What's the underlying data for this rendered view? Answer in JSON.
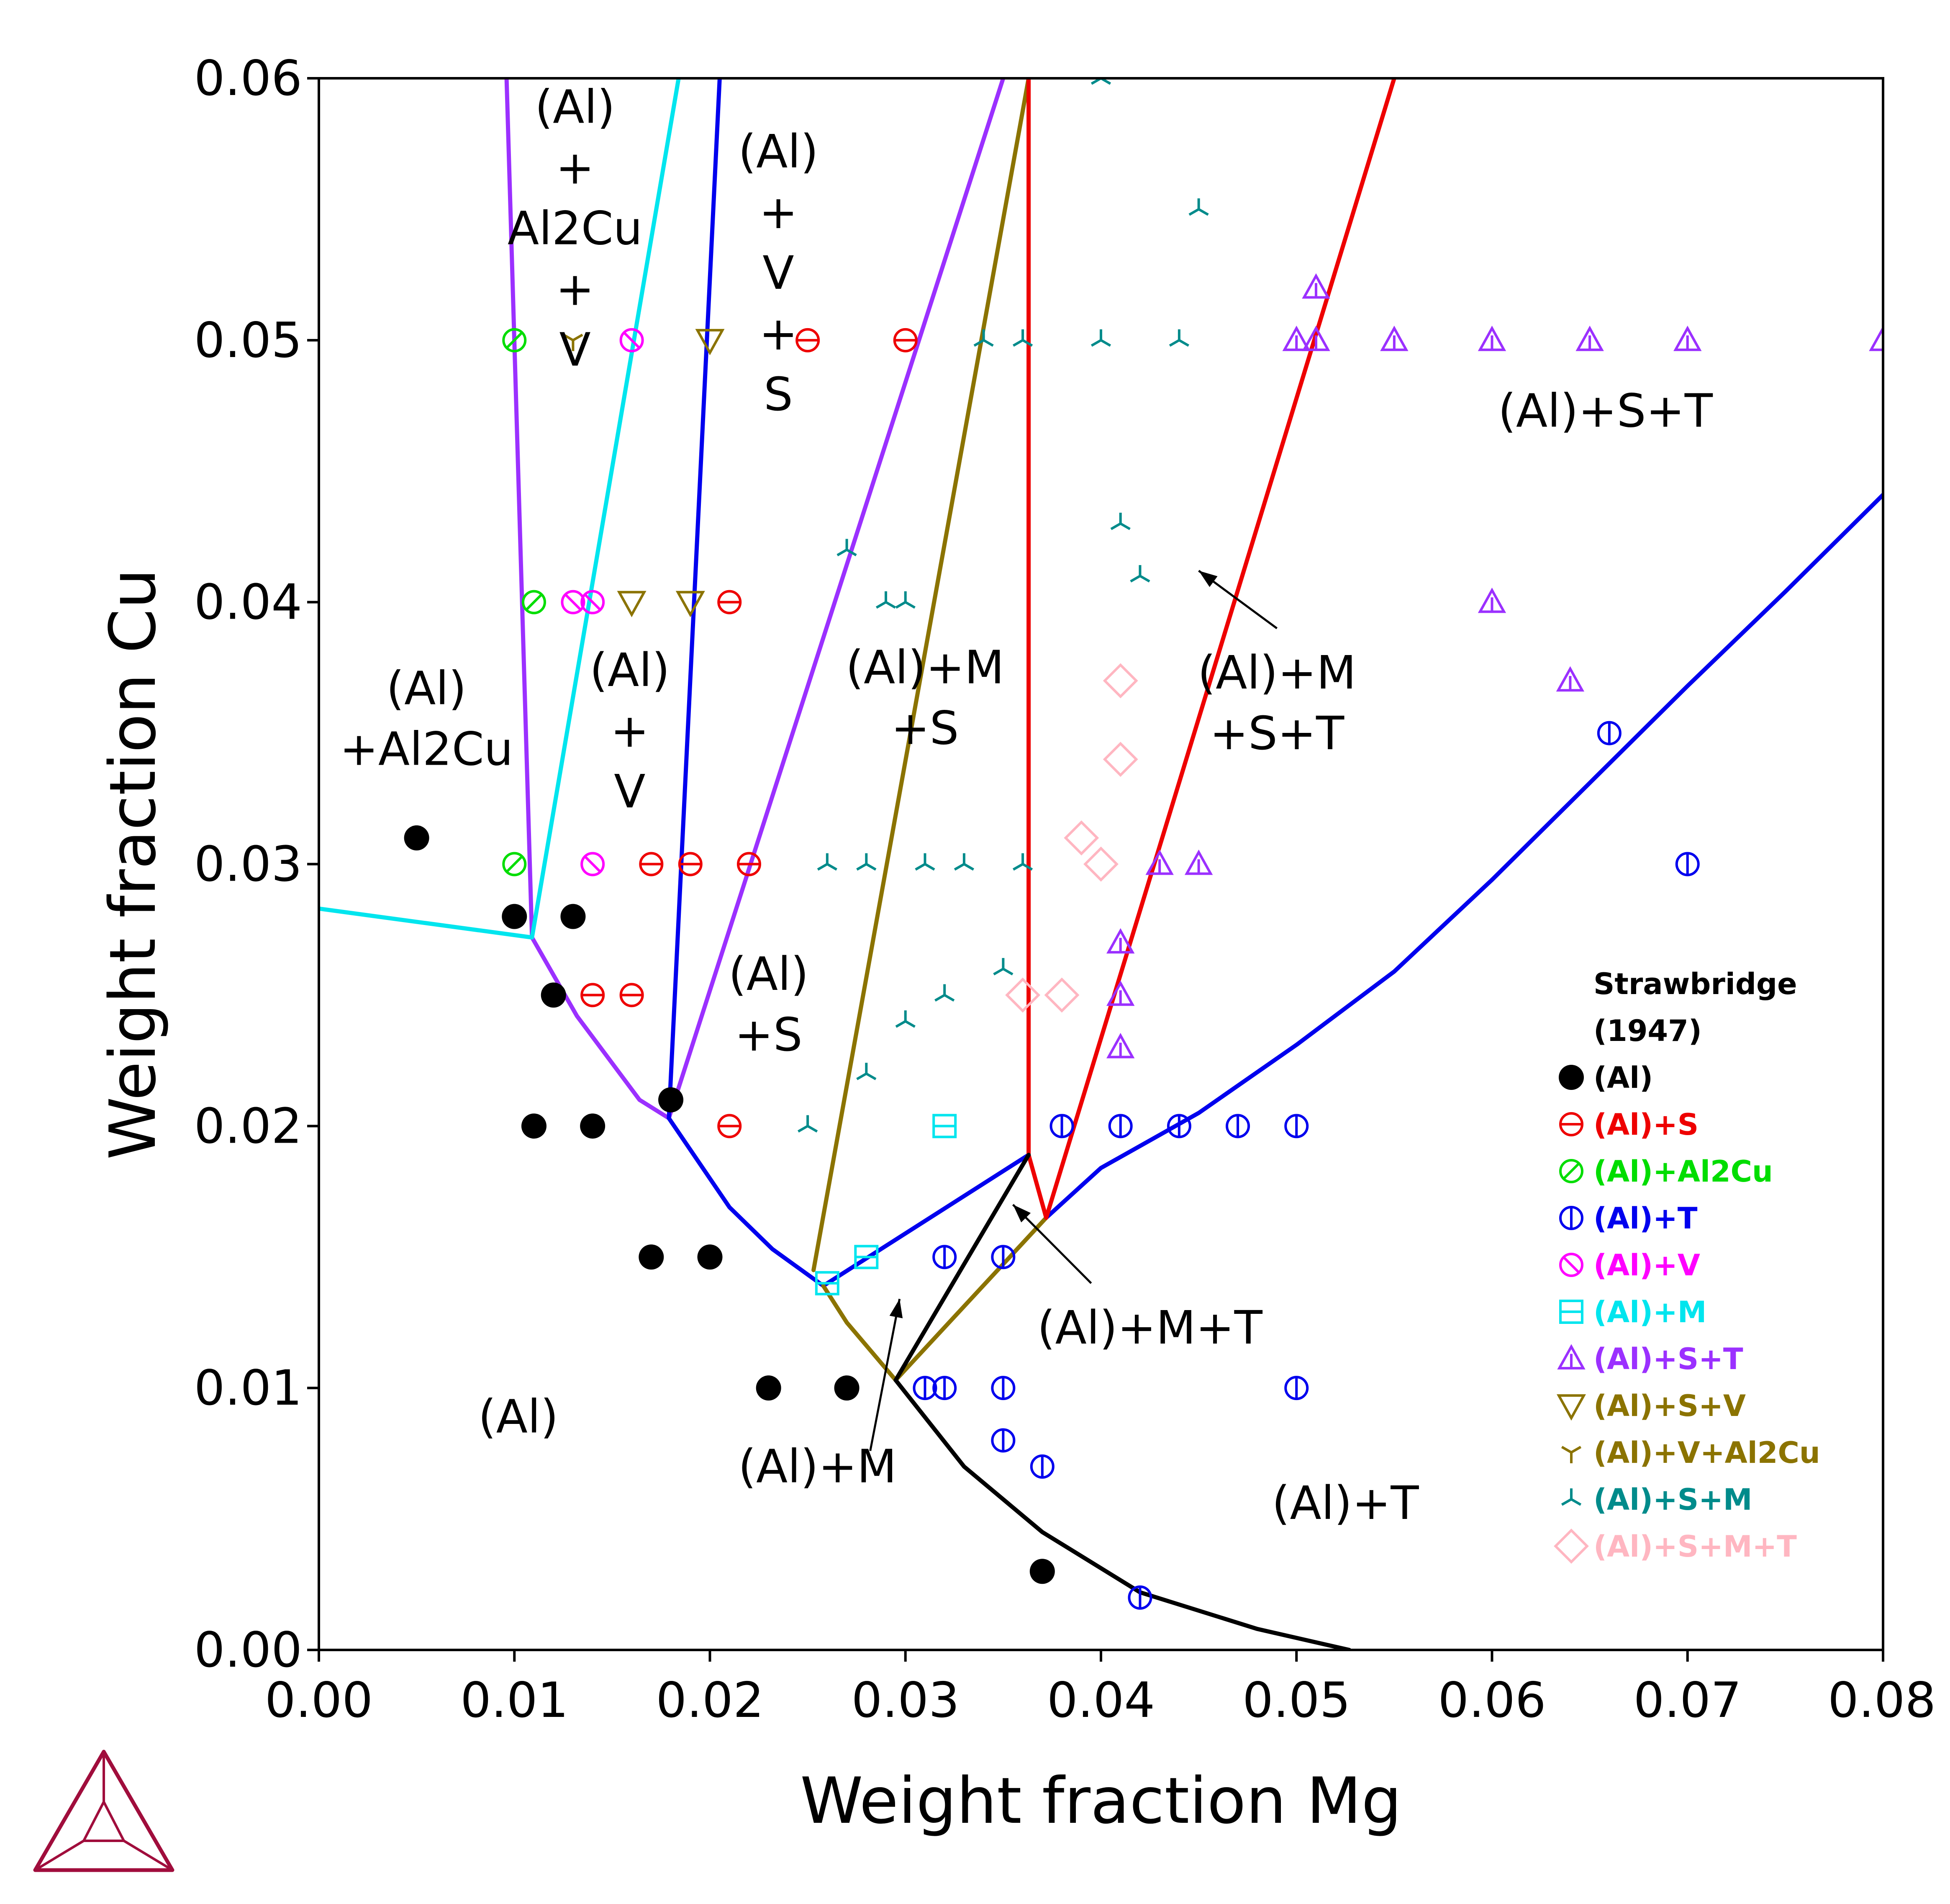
{
  "chart_data": {
    "type": "scatter",
    "title": "",
    "xlabel": "Weight fraction Mg",
    "ylabel": "Weight fraction Cu",
    "xlim": [
      0.0,
      0.08
    ],
    "ylim": [
      0.0,
      0.06
    ],
    "xticks": [
      "0.00",
      "0.01",
      "0.02",
      "0.03",
      "0.04",
      "0.05",
      "0.06",
      "0.07",
      "0.08"
    ],
    "yticks": [
      "0.00",
      "0.01",
      "0.02",
      "0.03",
      "0.04",
      "0.05",
      "0.06"
    ],
    "grid": false,
    "legend_position": "bottom-right",
    "legend_title": "Strawbridge",
    "legend_subtitle": "(1947)",
    "boundaries": [
      {
        "color": "#9b30ff",
        "points": [
          [
            0.0096,
            0.06
          ],
          [
            0.0109,
            0.0272
          ],
          [
            0.0132,
            0.0242
          ],
          [
            0.0164,
            0.021
          ],
          [
            0.0179,
            0.0203
          ],
          [
            0.035,
            0.06
          ]
        ]
      },
      {
        "color": "#00e5ee",
        "points": [
          [
            0.0,
            0.0283
          ],
          [
            0.0109,
            0.0272
          ],
          [
            0.0184,
            0.06
          ]
        ]
      },
      {
        "color": "#0000ee",
        "points": [
          [
            0.0179,
            0.0203
          ],
          [
            0.0205,
            0.06
          ]
        ]
      },
      {
        "color": "#0000ee",
        "points": [
          [
            0.0179,
            0.0203
          ],
          [
            0.021,
            0.0169
          ],
          [
            0.0232,
            0.0153
          ],
          [
            0.0258,
            0.0139
          ],
          [
            0.0363,
            0.0189
          ]
        ]
      },
      {
        "color": "#0000ee",
        "points": [
          [
            0.0372,
            0.0165
          ],
          [
            0.04,
            0.0184
          ],
          [
            0.045,
            0.0205
          ],
          [
            0.05,
            0.0231
          ],
          [
            0.055,
            0.0259
          ],
          [
            0.06,
            0.0294
          ],
          [
            0.065,
            0.0331
          ],
          [
            0.07,
            0.0368
          ],
          [
            0.075,
            0.0404
          ],
          [
            0.08,
            0.0441
          ]
        ]
      },
      {
        "color": "#8b7300",
        "points": [
          [
            0.0363,
            0.06
          ],
          [
            0.0253,
            0.0145
          ]
        ]
      },
      {
        "color": "#8b7300",
        "points": [
          [
            0.0258,
            0.0139
          ],
          [
            0.027,
            0.0125
          ],
          [
            0.0295,
            0.0103
          ],
          [
            0.0372,
            0.0165
          ]
        ]
      },
      {
        "color": "#ee0000",
        "points": [
          [
            0.0363,
            0.06
          ],
          [
            0.0363,
            0.0189
          ],
          [
            0.0372,
            0.0165
          ],
          [
            0.055,
            0.06
          ]
        ]
      },
      {
        "color": "#000000",
        "points": [
          [
            0.0295,
            0.0103
          ],
          [
            0.0363,
            0.0189
          ]
        ]
      },
      {
        "color": "#000000",
        "points": [
          [
            0.0295,
            0.0103
          ],
          [
            0.033,
            0.007
          ],
          [
            0.037,
            0.0045
          ],
          [
            0.042,
            0.0022
          ],
          [
            0.048,
            0.0008
          ],
          [
            0.0527,
            0.0
          ]
        ]
      }
    ],
    "series": [
      {
        "name": "(Al)",
        "marker": "filled-circle",
        "color": "#000000",
        "x": [
          0.005,
          0.01,
          0.013,
          0.012,
          0.018,
          0.011,
          0.014,
          0.017,
          0.02,
          0.023,
          0.027,
          0.037
        ],
        "y": [
          0.031,
          0.028,
          0.028,
          0.025,
          0.021,
          0.02,
          0.02,
          0.015,
          0.015,
          0.01,
          0.01,
          0.003
        ]
      },
      {
        "name": "(Al)+S",
        "marker": "circle-hbar",
        "color": "#ee0000",
        "x": [
          0.025,
          0.03,
          0.021,
          0.017,
          0.019,
          0.022,
          0.014,
          0.016,
          0.021
        ],
        "y": [
          0.05,
          0.05,
          0.04,
          0.03,
          0.03,
          0.03,
          0.025,
          0.025,
          0.02
        ]
      },
      {
        "name": "(Al)+Al2Cu",
        "marker": "circle-slash",
        "color": "#00dd00",
        "x": [
          0.01,
          0.011,
          0.01
        ],
        "y": [
          0.05,
          0.04,
          0.03
        ]
      },
      {
        "name": "(Al)+T",
        "marker": "circle-vbar",
        "color": "#0000ee",
        "x": [
          0.038,
          0.041,
          0.044,
          0.047,
          0.05,
          0.032,
          0.035,
          0.031,
          0.032,
          0.035,
          0.05,
          0.035,
          0.037,
          0.042,
          0.066,
          0.07
        ],
        "y": [
          0.02,
          0.02,
          0.02,
          0.02,
          0.02,
          0.015,
          0.015,
          0.01,
          0.01,
          0.01,
          0.01,
          0.008,
          0.007,
          0.002,
          0.035,
          0.03
        ]
      },
      {
        "name": "(Al)+V",
        "marker": "circle-backslash",
        "color": "#ff00ff",
        "x": [
          0.016,
          0.013,
          0.014,
          0.014
        ],
        "y": [
          0.05,
          0.04,
          0.04,
          0.03
        ]
      },
      {
        "name": "(Al)+M",
        "marker": "square-hbar",
        "color": "#00e5ee",
        "x": [
          0.032,
          0.028,
          0.026
        ],
        "y": [
          0.02,
          0.015,
          0.014
        ]
      },
      {
        "name": "(Al)+S+T",
        "marker": "triangle-up",
        "color": "#9b30ff",
        "x": [
          0.05,
          0.051,
          0.055,
          0.06,
          0.065,
          0.07,
          0.08,
          0.051,
          0.06,
          0.064,
          0.043,
          0.045,
          0.041,
          0.041,
          0.041
        ],
        "y": [
          0.05,
          0.05,
          0.05,
          0.05,
          0.05,
          0.05,
          0.05,
          0.052,
          0.04,
          0.037,
          0.03,
          0.03,
          0.027,
          0.025,
          0.023
        ]
      },
      {
        "name": "(Al)+S+V",
        "marker": "triangle-down",
        "color": "#8b7300",
        "x": [
          0.02,
          0.016,
          0.019
        ],
        "y": [
          0.05,
          0.04,
          0.04
        ]
      },
      {
        "name": "(Al)+V+Al2Cu",
        "marker": "tri-down",
        "color": "#8b7300",
        "x": [
          0.013
        ],
        "y": [
          0.05
        ]
      },
      {
        "name": "(Al)+S+M",
        "marker": "tri-up",
        "color": "#008b8b",
        "x": [
          0.034,
          0.036,
          0.04,
          0.044,
          0.045,
          0.04,
          0.027,
          0.029,
          0.03,
          0.041,
          0.042,
          0.026,
          0.028,
          0.031,
          0.033,
          0.036,
          0.035,
          0.032,
          0.03,
          0.028,
          0.025
        ],
        "y": [
          0.05,
          0.05,
          0.05,
          0.05,
          0.055,
          0.06,
          0.042,
          0.04,
          0.04,
          0.043,
          0.041,
          0.03,
          0.03,
          0.03,
          0.03,
          0.03,
          0.026,
          0.025,
          0.024,
          0.022,
          0.02
        ]
      },
      {
        "name": "(Al)+S+M+T",
        "marker": "diamond",
        "color": "#ffb6c1",
        "x": [
          0.041,
          0.041,
          0.039,
          0.04,
          0.036,
          0.038
        ],
        "y": [
          0.037,
          0.034,
          0.031,
          0.03,
          0.025,
          0.025
        ]
      }
    ],
    "annotations": [
      {
        "lines": [
          "(Al)",
          "+",
          "Al2Cu",
          "+",
          "V"
        ],
        "x": 0.0131,
        "y": 0.0583
      },
      {
        "lines": [
          "(Al)",
          "+",
          "V",
          "+",
          "S"
        ],
        "x": 0.0235,
        "y": 0.0566
      },
      {
        "lines": [
          "(Al)+S+T"
        ],
        "x": 0.0658,
        "y": 0.0467
      },
      {
        "lines": [
          "(Al)",
          "+Al2Cu"
        ],
        "x": 0.0055,
        "y": 0.0361
      },
      {
        "lines": [
          "(Al)",
          "+",
          "V"
        ],
        "x": 0.0159,
        "y": 0.0368
      },
      {
        "lines": [
          "(Al)+M",
          "+S"
        ],
        "x": 0.031,
        "y": 0.0369
      },
      {
        "lines": [
          "(Al)+M",
          "+S+T"
        ],
        "x": 0.049,
        "y": 0.0367
      },
      {
        "lines": [
          "(Al)",
          "+S"
        ],
        "x": 0.023,
        "y": 0.0252
      },
      {
        "lines": [
          "(Al)+M+T"
        ],
        "x": 0.0425,
        "y": 0.0117
      },
      {
        "lines": [
          "(Al)"
        ],
        "x": 0.0102,
        "y": 0.0083
      },
      {
        "lines": [
          "(Al)+M"
        ],
        "x": 0.0255,
        "y": 0.0064
      },
      {
        "lines": [
          "(Al)+T"
        ],
        "x": 0.0525,
        "y": 0.005
      }
    ],
    "arrows": [
      {
        "from": [
          0.049,
          0.039
        ],
        "to": [
          0.045,
          0.0412
        ]
      },
      {
        "from": [
          0.0395,
          0.014
        ],
        "to": [
          0.0355,
          0.017
        ]
      },
      {
        "from": [
          0.0282,
          0.0076
        ],
        "to": [
          0.0297,
          0.0134
        ]
      }
    ]
  },
  "logo": {
    "name": "triangle-logo-icon",
    "color": "#a00d3c"
  }
}
